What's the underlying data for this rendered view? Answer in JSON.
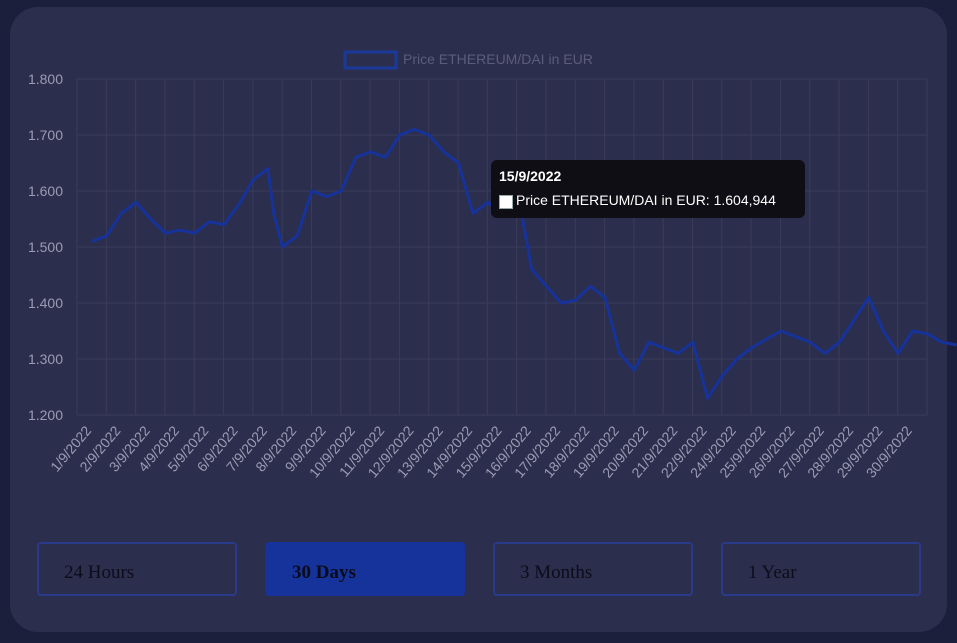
{
  "chart_data": {
    "type": "line",
    "legend": "Price ETHEREUM/DAI  in EUR",
    "legend_position": "top-center",
    "grid": true,
    "line_color": "#16329b",
    "ylim": [
      1200,
      1800
    ],
    "y_ticks": [
      "1.800",
      "1.700",
      "1.600",
      "1.500",
      "1.400",
      "1.300",
      "1.200"
    ],
    "x_ticks": [
      "1/9/2022",
      "2/9/2022",
      "3/9/2022",
      "4/9/2022",
      "5/9/2022",
      "6/9/2022",
      "7/9/2022",
      "8/9/2022",
      "9/9/2022",
      "10/9/2022",
      "11/9/2022",
      "12/9/2022",
      "13/9/2022",
      "14/9/2022",
      "15/9/2022",
      "16/9/2022",
      "17/9/2022",
      "18/9/2022",
      "19/9/2022",
      "20/9/2022",
      "21/9/2022",
      "22/9/2022",
      "24/9/2022",
      "25/9/2022",
      "26/9/2022",
      "27/9/2022",
      "28/9/2022",
      "29/9/2022",
      "30/9/2022"
    ],
    "x": [
      0,
      0.5,
      1,
      1.5,
      2,
      2.5,
      3,
      3.5,
      4,
      4.5,
      5,
      5.5,
      6,
      6.2,
      6.5,
      7,
      7.5,
      8,
      8.5,
      9,
      9.5,
      10,
      10.5,
      11,
      11.5,
      12,
      12.5,
      13,
      13.5,
      14,
      14.3,
      14.5,
      15,
      15.5,
      16,
      16.5,
      17,
      17.5,
      18,
      18.5,
      19,
      19.5,
      20,
      20.5,
      21,
      21.5,
      22,
      22.5,
      23,
      23.5,
      24,
      24.5,
      25,
      25.5,
      26,
      26.5,
      27,
      27.5,
      28,
      28.5,
      29,
      29.5
    ],
    "y": [
      1510,
      1520,
      1560,
      1580,
      1550,
      1525,
      1530,
      1525,
      1545,
      1540,
      1575,
      1620,
      1640,
      1560,
      1500,
      1520,
      1600,
      1590,
      1600,
      1660,
      1670,
      1660,
      1700,
      1710,
      1700,
      1670,
      1650,
      1560,
      1580,
      1560,
      1600,
      1605,
      1460,
      1430,
      1400,
      1405,
      1430,
      1410,
      1310,
      1280,
      1330,
      1320,
      1310,
      1330,
      1230,
      1270,
      1300,
      1320,
      1335,
      1350,
      1340,
      1330,
      1310,
      1330,
      1370,
      1410,
      1350,
      1310,
      1350,
      1345,
      1330,
      1325
    ],
    "tooltip": {
      "title": "15/9/2022",
      "label": "Price ETHEREUM/DAI  in EUR: 1.604,944",
      "x_index": 14.5
    }
  },
  "range_buttons": [
    "24 Hours",
    "30 Days",
    "3 Months",
    "1 Year"
  ],
  "active_range": "30 Days"
}
